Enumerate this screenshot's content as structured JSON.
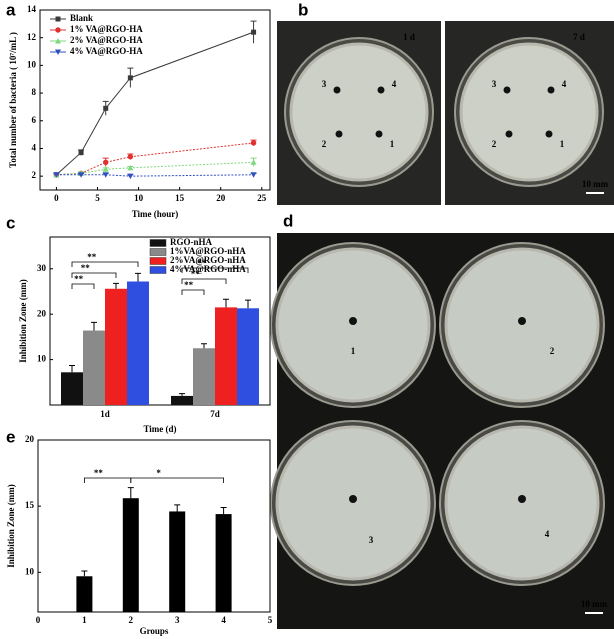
{
  "chart_data": [
    {
      "label": "a",
      "type": "line",
      "x_label": "Time (hour)",
      "y_label": "Total number of bacteria ( 10⁷/mL )",
      "x": [
        0,
        3,
        6,
        9,
        24
      ],
      "series": [
        {
          "name": "Blank",
          "color": "#3a3a3a",
          "marker": "square",
          "values": [
            2.1,
            3.7,
            6.9,
            9.1,
            12.4
          ],
          "errors": [
            0.1,
            0.2,
            0.5,
            0.7,
            0.8
          ]
        },
        {
          "name": "1% VA@RGO-HA",
          "color": "#e03030",
          "marker": "circle",
          "values": [
            2.1,
            2.2,
            3.0,
            3.4,
            4.4
          ],
          "errors": [
            0.1,
            0.1,
            0.3,
            0.2,
            0.2
          ]
        },
        {
          "name": "2% VA@RGO-HA",
          "color": "#7ed87e",
          "marker": "triangle-up",
          "values": [
            2.1,
            2.2,
            2.5,
            2.6,
            3.0
          ],
          "errors": [
            0.1,
            0.1,
            0.1,
            0.1,
            0.3
          ]
        },
        {
          "name": "4% VA@RGO-HA",
          "color": "#3050c0",
          "marker": "triangle-down",
          "values": [
            2.1,
            2.1,
            2.1,
            2.0,
            2.1
          ],
          "errors": [
            0.1,
            0.1,
            0.1,
            0.1,
            0.1
          ]
        }
      ],
      "xlim": [
        -2,
        26
      ],
      "xticks": [
        0,
        5,
        10,
        15,
        20,
        25
      ],
      "ylim": [
        1,
        14
      ],
      "yticks": [
        2,
        4,
        6,
        8,
        10,
        12,
        14
      ],
      "legend": "upper left"
    },
    {
      "label": "c",
      "type": "bar",
      "x_label": "Time (d)",
      "y_label": "Inhibition Zone (mm)",
      "categories": [
        "1d",
        "7d"
      ],
      "series": [
        {
          "name": "RGO-nHA",
          "color": "#111111",
          "values": [
            7.2,
            2.0
          ],
          "errors": [
            1.5,
            0.5
          ]
        },
        {
          "name": "1%VA@RGO-nHA",
          "color": "#8a8a8a",
          "values": [
            16.4,
            12.5
          ],
          "errors": [
            1.8,
            1.0
          ]
        },
        {
          "name": "2%VA@RGO-nHA",
          "color": "#ee2020",
          "values": [
            25.6,
            21.5
          ],
          "errors": [
            1.2,
            1.8
          ]
        },
        {
          "name": "4%VA@RGO-nHA",
          "color": "#2f4fe0",
          "values": [
            27.2,
            21.3
          ],
          "errors": [
            1.8,
            1.8
          ]
        }
      ],
      "ylim": [
        0,
        37
      ],
      "yticks": [
        10,
        20,
        30
      ],
      "legend": "upper right",
      "annotations": [
        "**",
        "**",
        "**",
        "**",
        "**",
        "**"
      ]
    },
    {
      "label": "e",
      "type": "bar",
      "x_label": "Groups",
      "y_label": "Inhibition Zone (mm)",
      "x": [
        1,
        2,
        3,
        4
      ],
      "values": [
        9.7,
        15.6,
        14.6,
        14.4
      ],
      "errors": [
        0.4,
        0.8,
        0.5,
        0.5
      ],
      "color": "#000000",
      "xlim": [
        0,
        5
      ],
      "xticks": [
        0,
        1,
        2,
        3,
        4,
        5
      ],
      "ylim": [
        7,
        20
      ],
      "yticks": [
        10,
        15,
        20
      ],
      "annotations": [
        "**",
        "*"
      ]
    }
  ],
  "panel_b": {
    "label": "b",
    "photos": [
      {
        "title": "1 d",
        "spots": [
          "1",
          "2",
          "3",
          "4"
        ]
      },
      {
        "title": "7 d",
        "spots": [
          "1",
          "2",
          "3",
          "4"
        ]
      }
    ],
    "scale": "10 mm"
  },
  "panel_d": {
    "label": "d",
    "spots": [
      "1",
      "2",
      "3",
      "4"
    ],
    "scale": "10 mm"
  }
}
